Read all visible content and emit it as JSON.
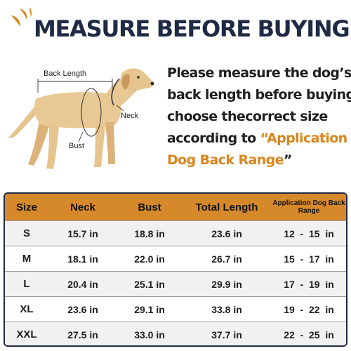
{
  "header": {
    "title": "MEASURE BEFORE BUYING",
    "accent_color": "#d9861f",
    "title_color": "#1f2a44"
  },
  "illustration": {
    "subject_icon": "dog-icon",
    "labels": {
      "back": "Back Length",
      "neck": "Neck",
      "bust": "Bust"
    }
  },
  "intro": {
    "line1": "Please measure the dog’s",
    "line2": "back length before buying,",
    "line3": "choose thecorrect size",
    "line4a": "according to ",
    "line4b": "“Application",
    "line5a": "Dog Back Range",
    "line5b": "”"
  },
  "table": {
    "header_color": "#d6892a",
    "headers": [
      "Size",
      "Neck",
      "Bust",
      "Total Length",
      "Application Dog Back Range"
    ],
    "rows": [
      {
        "size": "S",
        "neck": "15.7 in",
        "bust": "18.8 in",
        "length": "23.6 in",
        "range": "12  -  15  in"
      },
      {
        "size": "M",
        "neck": "18.1 in",
        "bust": "22.0 in",
        "length": "26.7 in",
        "range": "15  -  17  in"
      },
      {
        "size": "L",
        "neck": "20.4 in",
        "bust": "25.1 in",
        "length": "29.9 in",
        "range": "17  -  19  in"
      },
      {
        "size": "XL",
        "neck": "23.6 in",
        "bust": "29.1 in",
        "length": "33.8 in",
        "range": "19  -  22  in"
      },
      {
        "size": "XXL",
        "neck": "27.5 in",
        "bust": "33.0 in",
        "length": "37.7 in",
        "range": "22  -  25  in"
      }
    ]
  }
}
